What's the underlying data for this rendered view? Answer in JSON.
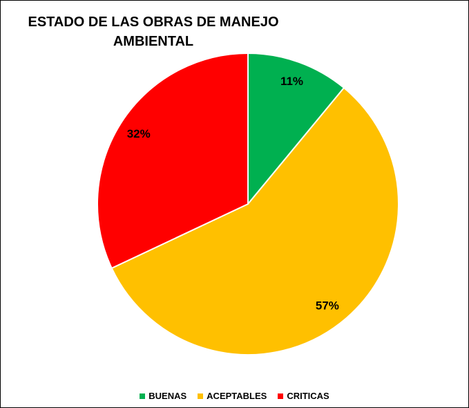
{
  "chart_data": {
    "type": "pie",
    "title": "ESTADO DE LAS OBRAS DE MANEJO AMBIENTAL",
    "categories": [
      "BUENAS",
      "ACEPTABLES",
      "CRITICAS"
    ],
    "values": [
      11,
      57,
      32
    ],
    "value_labels": [
      "11%",
      "57%",
      "32%"
    ],
    "colors": [
      "#00b050",
      "#ffc000",
      "#ff0000"
    ],
    "legend": "bottom"
  }
}
